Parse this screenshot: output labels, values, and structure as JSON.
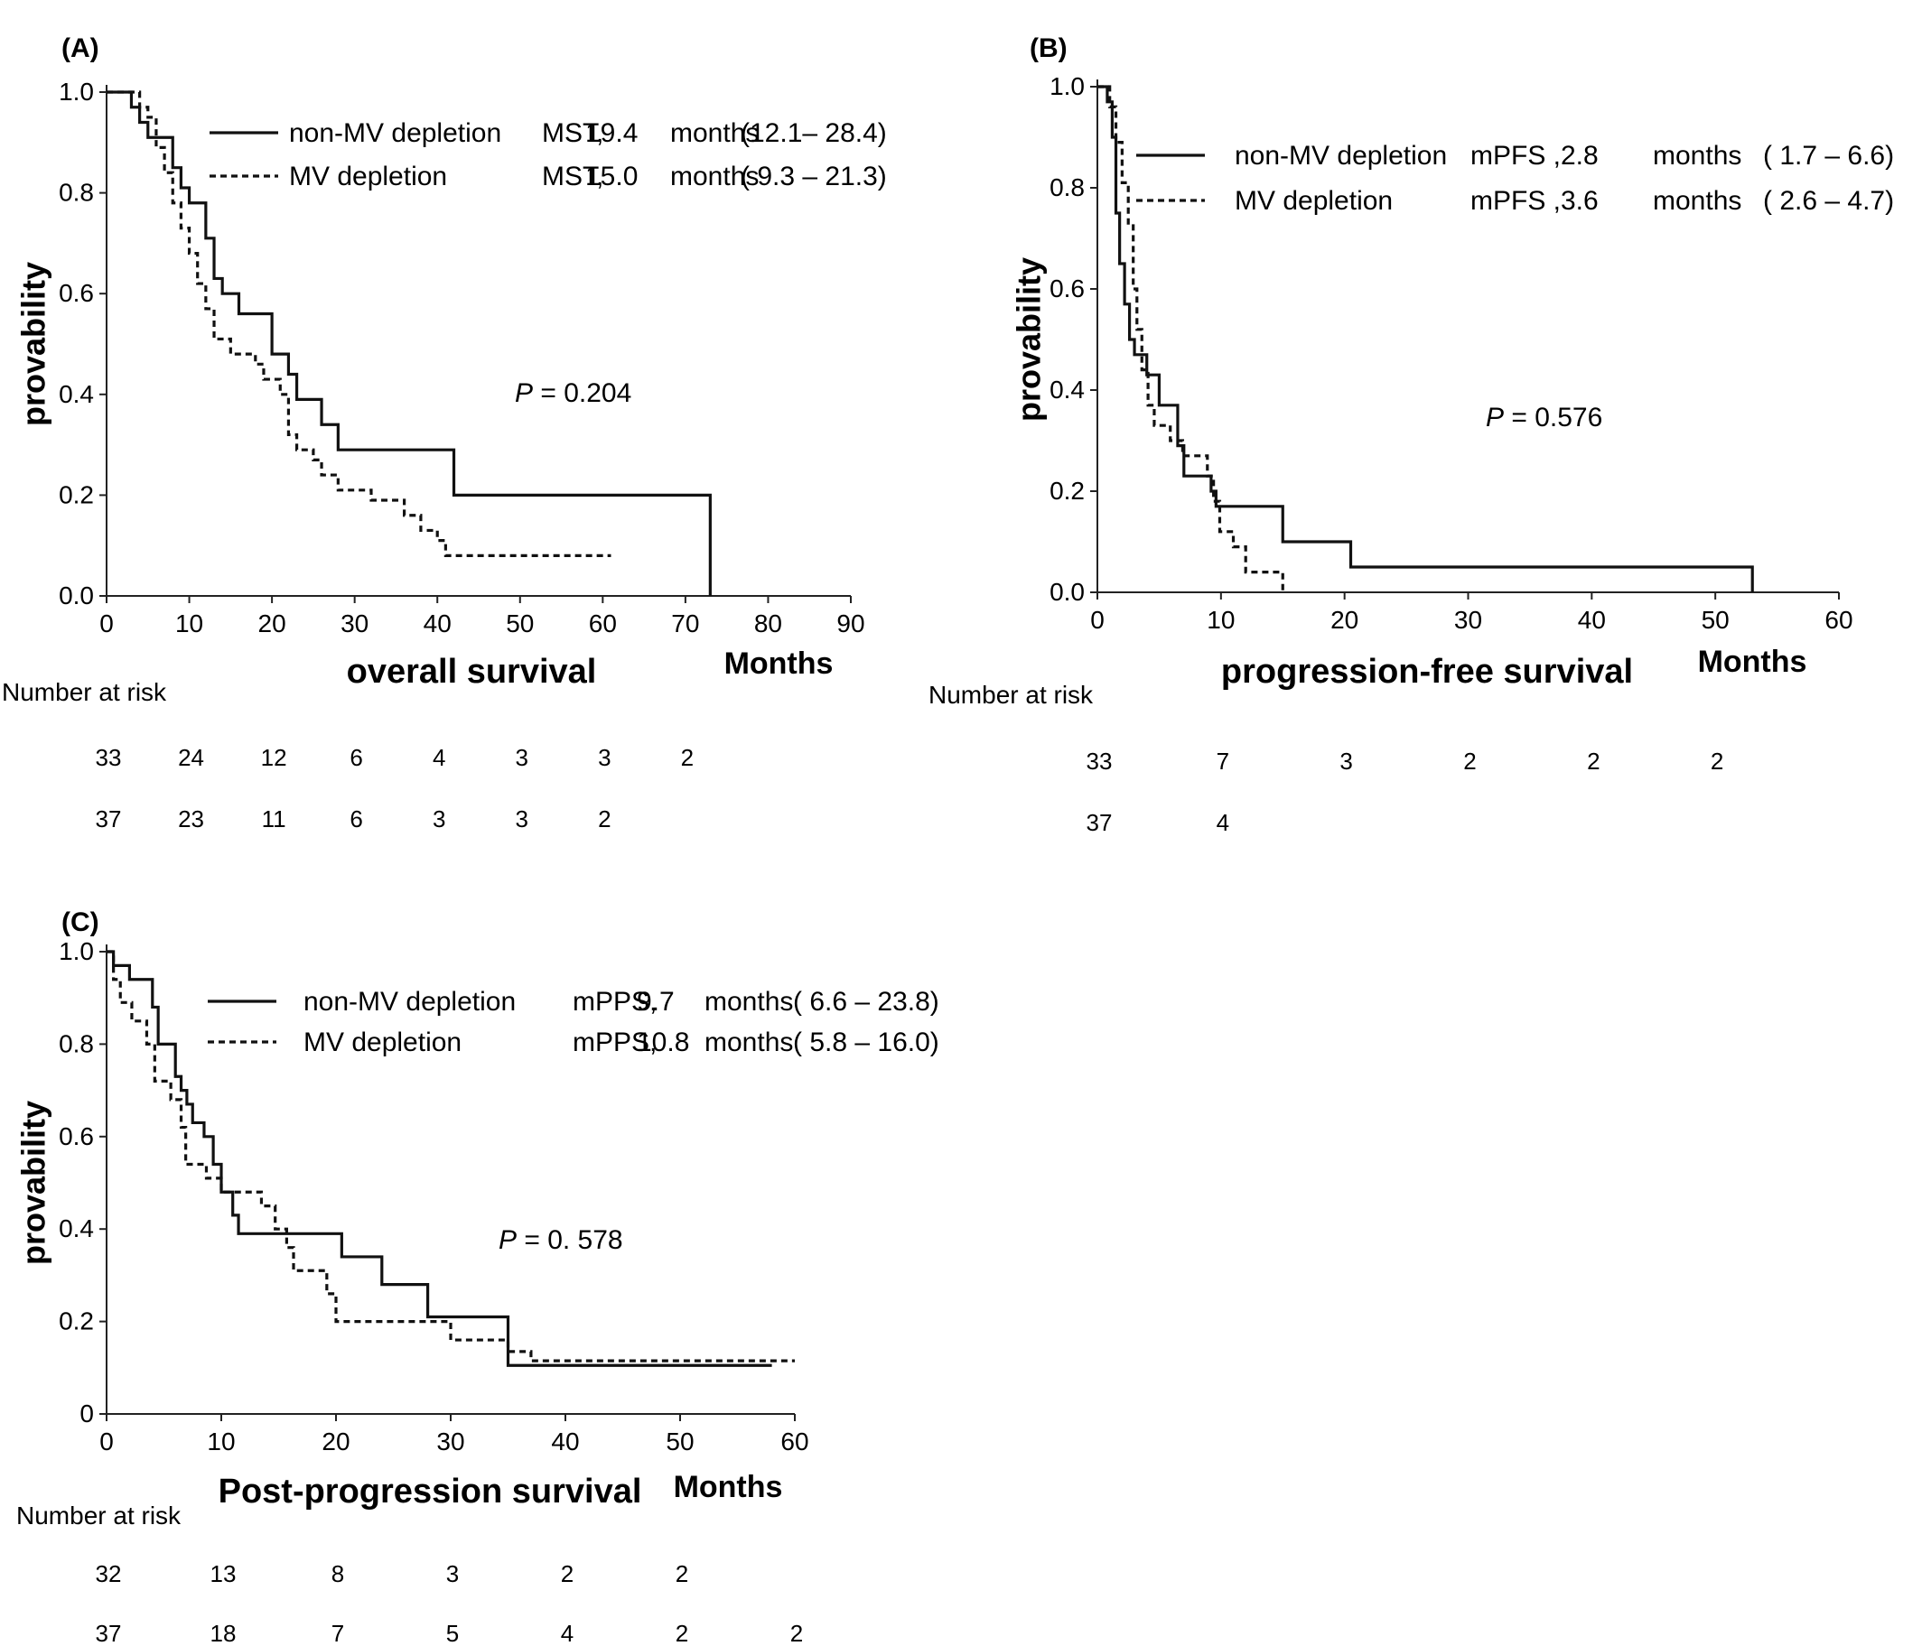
{
  "chart_data": [
    {
      "id": "A",
      "type": "line",
      "panel_label": "(A)",
      "ylabel": "provability",
      "xlabel": "overall survival",
      "xunit": "Months",
      "xlim": [
        0,
        90
      ],
      "ylim": [
        0,
        1
      ],
      "xticks": [
        0,
        10,
        20,
        30,
        40,
        50,
        60,
        70,
        80,
        90
      ],
      "yticks": [
        0,
        0.2,
        0.4,
        0.6,
        0.8,
        1.0
      ],
      "ytick_labels": [
        "0.0",
        "0.2",
        "0.4",
        "0.6",
        "0.8",
        "1.0"
      ],
      "p_value": {
        "label": "P",
        "text": " = 0.204"
      },
      "series": [
        {
          "name": "non-MV depletion",
          "style": "solid",
          "stat": "MST,",
          "value": "19.4",
          "unit": "months",
          "ci": "(12.1– 28.4)",
          "steps": [
            [
              0,
              1.0
            ],
            [
              3,
              0.97
            ],
            [
              4,
              0.94
            ],
            [
              5,
              0.91
            ],
            [
              8,
              0.85
            ],
            [
              9,
              0.81
            ],
            [
              10,
              0.78
            ],
            [
              12,
              0.71
            ],
            [
              13,
              0.63
            ],
            [
              14,
              0.6
            ],
            [
              16,
              0.56
            ],
            [
              20,
              0.48
            ],
            [
              22,
              0.44
            ],
            [
              23,
              0.39
            ],
            [
              26,
              0.34
            ],
            [
              28,
              0.29
            ],
            [
              42,
              0.2
            ],
            [
              73,
              0.0
            ]
          ],
          "end": 73
        },
        {
          "name": "MV depletion",
          "style": "dashed",
          "stat": "MST,",
          "value": "15.0",
          "unit": "months",
          "ci": "( 9.3 – 21.3)",
          "steps": [
            [
              0,
              1.0
            ],
            [
              4,
              0.97
            ],
            [
              5,
              0.95
            ],
            [
              6,
              0.89
            ],
            [
              7,
              0.84
            ],
            [
              8,
              0.78
            ],
            [
              9,
              0.73
            ],
            [
              10,
              0.68
            ],
            [
              11,
              0.62
            ],
            [
              12,
              0.57
            ],
            [
              13,
              0.51
            ],
            [
              15,
              0.48
            ],
            [
              18,
              0.46
            ],
            [
              19,
              0.43
            ],
            [
              21,
              0.4
            ],
            [
              22,
              0.32
            ],
            [
              23,
              0.29
            ],
            [
              25,
              0.27
            ],
            [
              26,
              0.24
            ],
            [
              28,
              0.21
            ],
            [
              32,
              0.19
            ],
            [
              36,
              0.16
            ],
            [
              38,
              0.13
            ],
            [
              40,
              0.11
            ],
            [
              41,
              0.08
            ]
          ],
          "end": 61
        }
      ],
      "risk_title": "Number at risk",
      "risk_times": [
        0,
        10,
        20,
        30,
        40,
        50,
        60,
        70
      ],
      "risk_rows": [
        [
          "33",
          "24",
          "12",
          "6",
          "4",
          "3",
          "3",
          "2"
        ],
        [
          "37",
          "23",
          "11",
          "6",
          "3",
          "3",
          "2"
        ]
      ]
    },
    {
      "id": "B",
      "type": "line",
      "panel_label": "(B)",
      "ylabel": "provability",
      "xlabel": "progression-free survival",
      "xunit": "Months",
      "xlim": [
        0,
        60
      ],
      "ylim": [
        0,
        1
      ],
      "xticks": [
        0,
        10,
        20,
        30,
        40,
        50,
        60
      ],
      "yticks": [
        0,
        0.2,
        0.4,
        0.6,
        0.8,
        1.0
      ],
      "ytick_labels": [
        "0.0",
        "0.2",
        "0.4",
        "0.6",
        "0.8",
        "1.0"
      ],
      "p_value": {
        "label": "P",
        "text": " = 0.576"
      },
      "series": [
        {
          "name": "non-MV depletion",
          "style": "solid",
          "stat": "mPFS , ",
          "value": "2.8",
          "unit": "months",
          "ci": "( 1.7 – 6.6)",
          "steps": [
            [
              0,
              1.0
            ],
            [
              0.8,
              0.97
            ],
            [
              1.2,
              0.9
            ],
            [
              1.5,
              0.75
            ],
            [
              1.8,
              0.65
            ],
            [
              2.2,
              0.57
            ],
            [
              2.6,
              0.5
            ],
            [
              3,
              0.47
            ],
            [
              4,
              0.43
            ],
            [
              5,
              0.37
            ],
            [
              6.5,
              0.29
            ],
            [
              7,
              0.23
            ],
            [
              9.2,
              0.2
            ],
            [
              9.6,
              0.17
            ],
            [
              15,
              0.1
            ],
            [
              20.5,
              0.05
            ],
            [
              53,
              0.0
            ]
          ],
          "end": 53
        },
        {
          "name": "MV depletion",
          "style": "dashed",
          "stat": "mPFS , ",
          "value": "3.6",
          "unit": "months",
          "ci": "( 2.6 – 4.7)",
          "steps": [
            [
              0,
              1.0
            ],
            [
              1,
              0.96
            ],
            [
              1.5,
              0.89
            ],
            [
              2,
              0.81
            ],
            [
              2.5,
              0.73
            ],
            [
              2.9,
              0.6
            ],
            [
              3.2,
              0.52
            ],
            [
              3.6,
              0.44
            ],
            [
              4.1,
              0.37
            ],
            [
              4.6,
              0.33
            ],
            [
              5.9,
              0.3
            ],
            [
              6.9,
              0.27
            ],
            [
              8.9,
              0.23
            ],
            [
              9.4,
              0.18
            ],
            [
              9.9,
              0.12
            ],
            [
              11,
              0.09
            ],
            [
              12,
              0.04
            ],
            [
              15,
              0.0
            ]
          ],
          "end": 15
        }
      ],
      "risk_title": "Number at risk",
      "risk_times": [
        0,
        10,
        20,
        30,
        40,
        50
      ],
      "risk_rows": [
        [
          "33",
          "7",
          "3",
          "2",
          "2",
          "2"
        ],
        [
          "37",
          "4"
        ]
      ]
    },
    {
      "id": "C",
      "type": "line",
      "panel_label": "(C)",
      "ylabel": "provability",
      "xlabel": "Post-progression survival",
      "xunit": "Months",
      "xlim": [
        0,
        60
      ],
      "ylim": [
        0,
        1
      ],
      "xticks": [
        0,
        10,
        20,
        30,
        40,
        50,
        60
      ],
      "yticks": [
        0,
        0.2,
        0.4,
        0.6,
        0.8,
        1.0
      ],
      "ytick_labels": [
        "0",
        "0.2",
        "0.4",
        "0.6",
        "0.8",
        "1.0"
      ],
      "p_value": {
        "label": "P",
        "text": " = 0. 578"
      },
      "series": [
        {
          "name": "non-MV depletion",
          "style": "solid",
          "stat": "mPPS,",
          "value": "9.7",
          "unit": "months",
          "ci": "( 6.6 – 23.8)",
          "steps": [
            [
              0,
              1.0
            ],
            [
              0.6,
              0.97
            ],
            [
              2,
              0.94
            ],
            [
              4,
              0.88
            ],
            [
              4.5,
              0.8
            ],
            [
              6,
              0.73
            ],
            [
              6.5,
              0.7
            ],
            [
              7,
              0.67
            ],
            [
              7.5,
              0.63
            ],
            [
              8.5,
              0.6
            ],
            [
              9.3,
              0.54
            ],
            [
              10,
              0.48
            ],
            [
              11,
              0.43
            ],
            [
              11.5,
              0.39
            ],
            [
              20.5,
              0.34
            ],
            [
              24,
              0.28
            ],
            [
              28,
              0.21
            ],
            [
              35,
              0.105
            ]
          ],
          "end": 58
        },
        {
          "name": "MV depletion",
          "style": "dashed",
          "stat": "mPPS,",
          "value": "10.8",
          "unit": "months",
          "ci": "( 5.8 – 16.0)",
          "steps": [
            [
              0,
              1.0
            ],
            [
              0.6,
              0.94
            ],
            [
              1.2,
              0.89
            ],
            [
              2.2,
              0.85
            ],
            [
              3.5,
              0.8
            ],
            [
              4.2,
              0.72
            ],
            [
              5.6,
              0.68
            ],
            [
              6.5,
              0.62
            ],
            [
              6.9,
              0.54
            ],
            [
              8.7,
              0.51
            ],
            [
              10,
              0.48
            ],
            [
              13.5,
              0.45
            ],
            [
              14.7,
              0.4
            ],
            [
              15.7,
              0.36
            ],
            [
              16.3,
              0.31
            ],
            [
              19.2,
              0.26
            ],
            [
              20,
              0.2
            ],
            [
              30,
              0.16
            ],
            [
              35,
              0.135
            ],
            [
              37,
              0.115
            ]
          ],
          "end": 60
        }
      ],
      "risk_title": "Number at risk",
      "risk_times": [
        0,
        10,
        20,
        30,
        40,
        50,
        60
      ],
      "risk_rows": [
        [
          "32",
          "13",
          "8",
          "3",
          "2",
          "2"
        ],
        [
          "37",
          "18",
          "7",
          "5",
          "4",
          "2",
          "2"
        ]
      ]
    }
  ]
}
